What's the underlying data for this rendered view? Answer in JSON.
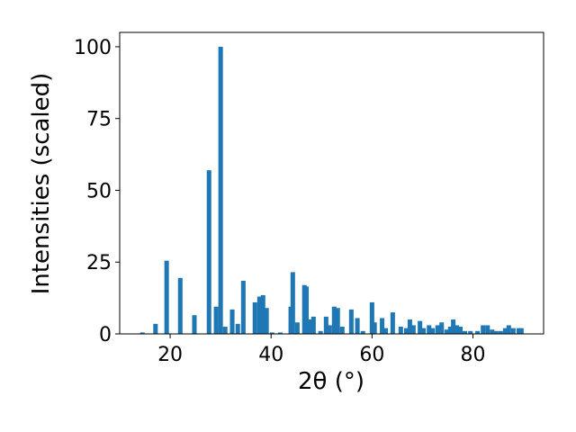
{
  "chart_data": {
    "type": "bar",
    "xlabel": "2θ (°)",
    "ylabel": "Intensities (scaled)",
    "color": "#1f77b4",
    "x": [
      14.5,
      17.1,
      19.3,
      22,
      24.8,
      27.7,
      29.1,
      30,
      30.9,
      32.3,
      33.4,
      34.5,
      36.8,
      37.7,
      38.4,
      39.1,
      40.2,
      41.8,
      43.9,
      44.3,
      45.2,
      46.6,
      47,
      47.7,
      48.4,
      49.8,
      50.9,
      51.6,
      52.5,
      53.2,
      54.1,
      55.9,
      57.1,
      58.2,
      60,
      60.5,
      62,
      62.7,
      64.1,
      65.7,
      66.8,
      67.5,
      68.2,
      69.5,
      70.2,
      71.3,
      72,
      73,
      73.8,
      74.8,
      75.5,
      76.1,
      76.8,
      77.5,
      78.4,
      79.5,
      80.9,
      82,
      82.9,
      83.8,
      84.6,
      85.5,
      86.4,
      87.1,
      88,
      89.1,
      89.6
    ],
    "values": [
      0.5,
      3.5,
      25.5,
      19.5,
      6.5,
      57,
      9.5,
      100,
      2.5,
      8.5,
      3.5,
      18.5,
      11,
      13,
      13.5,
      9,
      0.5,
      0.5,
      9.5,
      21.5,
      4,
      17,
      16.5,
      5,
      6,
      1,
      6,
      3,
      9.5,
      9,
      2.5,
      8.5,
      5.5,
      1,
      11,
      4,
      5.5,
      2,
      7.5,
      2.5,
      2,
      5,
      3,
      4.5,
      2,
      3,
      2,
      3,
      4,
      1.5,
      2.5,
      5,
      3,
      2.5,
      1,
      1,
      1,
      3,
      3,
      1.5,
      1,
      1,
      2,
      3,
      2,
      2,
      2
    ],
    "xlim": [
      10,
      94
    ],
    "ylim": [
      0,
      105
    ],
    "xticks": [
      20,
      40,
      60,
      80
    ],
    "yticks": [
      0,
      25,
      50,
      75,
      100
    ]
  }
}
